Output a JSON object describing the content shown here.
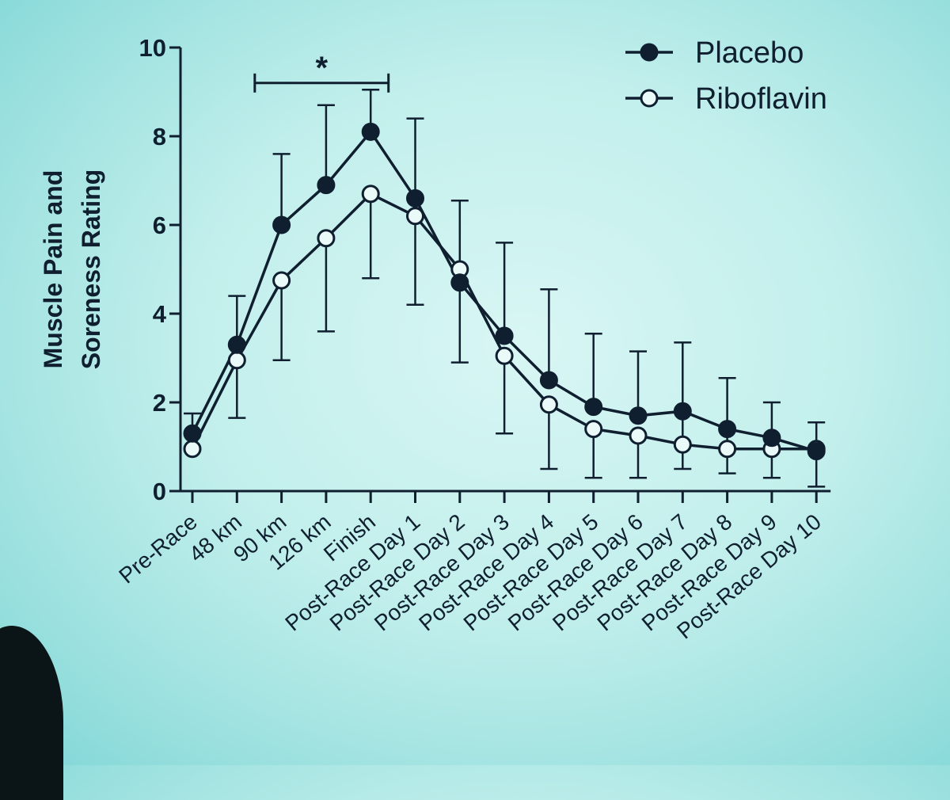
{
  "chart_data": {
    "type": "line",
    "title": "",
    "xlabel": "",
    "ylabel_lines": [
      "Muscle Pain and",
      "Soreness Rating"
    ],
    "ylim": [
      0,
      10
    ],
    "yticks": [
      0,
      2,
      4,
      6,
      8,
      10
    ],
    "categories": [
      "Pre-Race",
      "48 km",
      "90 km",
      "126 km",
      "Finish",
      "Post-Race Day 1",
      "Post-Race Day 2",
      "Post-Race Day 3",
      "Post-Race Day 4",
      "Post-Race Day 5",
      "Post-Race Day 6",
      "Post-Race Day 7",
      "Post-Race Day 8",
      "Post-Race Day 9",
      "Post-Race Day 10"
    ],
    "series": [
      {
        "name": "Placebo",
        "marker": "filled-circle",
        "values": [
          1.3,
          3.3,
          6.0,
          6.9,
          8.1,
          6.6,
          4.7,
          3.5,
          2.5,
          1.9,
          1.7,
          1.8,
          1.4,
          1.2,
          0.9
        ],
        "error_upper": [
          1.75,
          4.4,
          7.6,
          8.7,
          9.05,
          8.4,
          6.55,
          5.6,
          4.55,
          3.55,
          3.15,
          3.35,
          2.55,
          2.0,
          1.55
        ],
        "error_lower": [
          null,
          1.65,
          null,
          null,
          null,
          null,
          null,
          null,
          null,
          null,
          null,
          0.5,
          0.4,
          0.3,
          0.1
        ]
      },
      {
        "name": "Riboflavin",
        "marker": "open-circle",
        "values": [
          0.95,
          2.95,
          4.75,
          5.7,
          6.7,
          6.2,
          5.0,
          3.05,
          1.95,
          1.4,
          1.25,
          1.05,
          0.95,
          0.95,
          0.95
        ],
        "error_upper": [
          null,
          null,
          null,
          null,
          null,
          null,
          null,
          null,
          null,
          null,
          null,
          null,
          null,
          null,
          null
        ],
        "error_lower": [
          null,
          null,
          2.95,
          3.6,
          4.8,
          4.2,
          2.9,
          1.3,
          0.5,
          0.3,
          0.3,
          null,
          null,
          null,
          null
        ]
      }
    ],
    "significance": {
      "label": "*",
      "from": "48 km",
      "to": "Finish",
      "y": 9.7
    },
    "legend_position": "top-right",
    "grid": false,
    "colors": {
      "ink": "#0f1f2f",
      "marker_open_fill": "#eafaf9"
    }
  }
}
